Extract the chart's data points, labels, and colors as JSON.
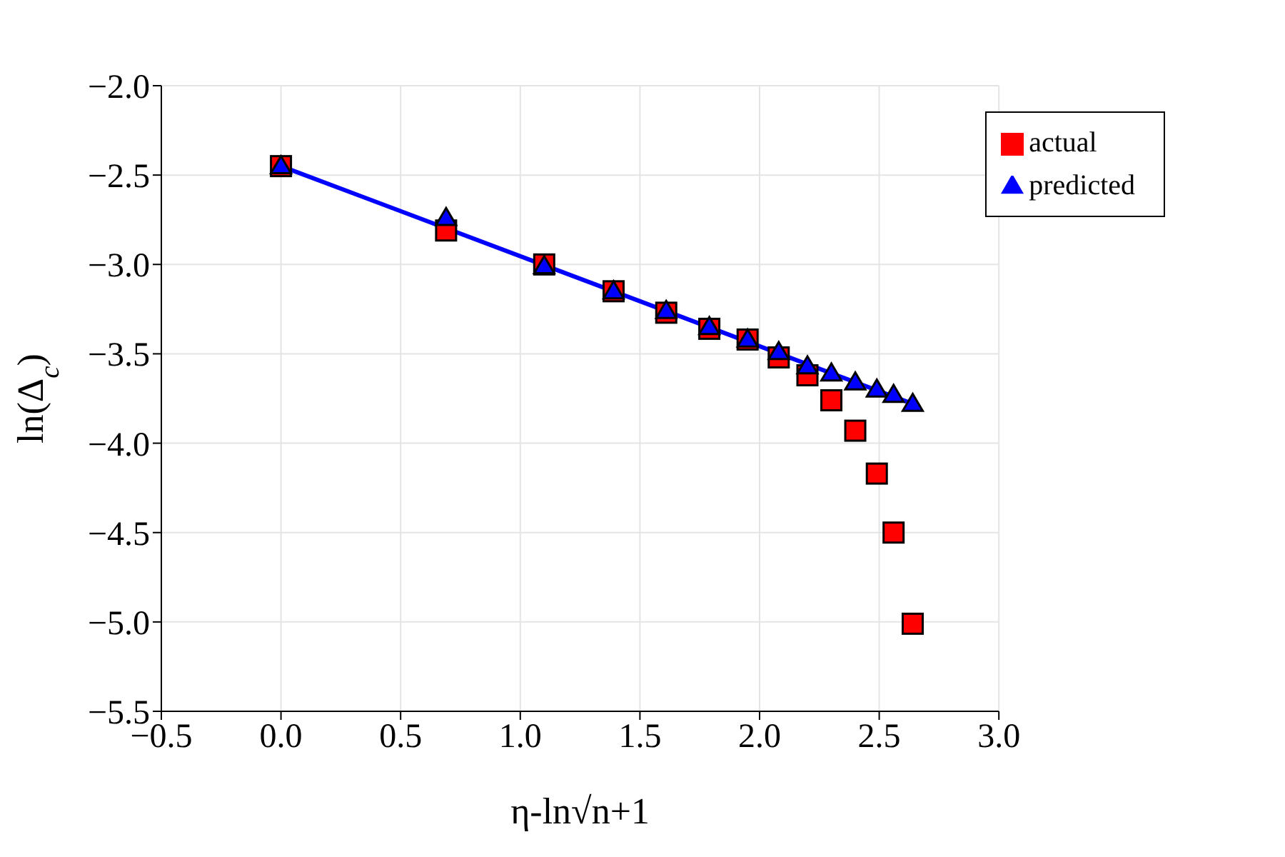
{
  "chart_data": {
    "type": "scatter",
    "xlabel": "η-ln√n+1",
    "ylabel": "ln(Δ$_{c}$)",
    "xlim": [
      -0.5,
      3.0
    ],
    "ylim": [
      -5.5,
      -2.0
    ],
    "xticks": [
      {
        "value": -0.5,
        "label": "−0.5"
      },
      {
        "value": 0,
        "label": "0.0"
      },
      {
        "value": 0.5,
        "label": "0.5"
      },
      {
        "value": 1,
        "label": "1.0"
      },
      {
        "value": 1.5,
        "label": "1.5"
      },
      {
        "value": 2,
        "label": "2.0"
      },
      {
        "value": 2.5,
        "label": "2.5"
      },
      {
        "value": 3,
        "label": "3.0"
      }
    ],
    "yticks": [
      {
        "value": -5.5,
        "label": "−5.5"
      },
      {
        "value": -5,
        "label": "−5.0"
      },
      {
        "value": -4.5,
        "label": "−4.5"
      },
      {
        "value": -4,
        "label": "−4.0"
      },
      {
        "value": -3.5,
        "label": "−3.5"
      },
      {
        "value": -3,
        "label": "−3.0"
      },
      {
        "value": -2.5,
        "label": "−2.5"
      },
      {
        "value": -2,
        "label": "−2.0"
      }
    ],
    "x": [
      0,
      0.69,
      1.1,
      1.39,
      1.61,
      1.79,
      1.95,
      2.08,
      2.2,
      2.3,
      2.4,
      2.49,
      2.56,
      2.64
    ],
    "series": [
      {
        "name": "actual",
        "marker": "square",
        "color": "#ff0000",
        "values": [
          -2.45,
          -2.81,
          -3.0,
          -3.15,
          -3.27,
          -3.36,
          -3.42,
          -3.52,
          -3.62,
          -3.76,
          -3.93,
          -4.17,
          -4.5,
          -5.01
        ]
      },
      {
        "type": "line",
        "marker": "none",
        "line_style": "solid",
        "color": "#0000ff",
        "x": [
          0,
          2.64
        ],
        "values": [
          -2.45,
          -3.78
        ]
      },
      {
        "name": "predicted",
        "marker": "triangle",
        "color": "#0000ff",
        "values": [
          -2.45,
          -2.74,
          -3.01,
          -3.15,
          -3.26,
          -3.35,
          -3.42,
          -3.49,
          -3.57,
          -3.61,
          -3.66,
          -3.7,
          -3.73,
          -3.78
        ]
      }
    ],
    "grid": true,
    "legend": "top right"
  }
}
